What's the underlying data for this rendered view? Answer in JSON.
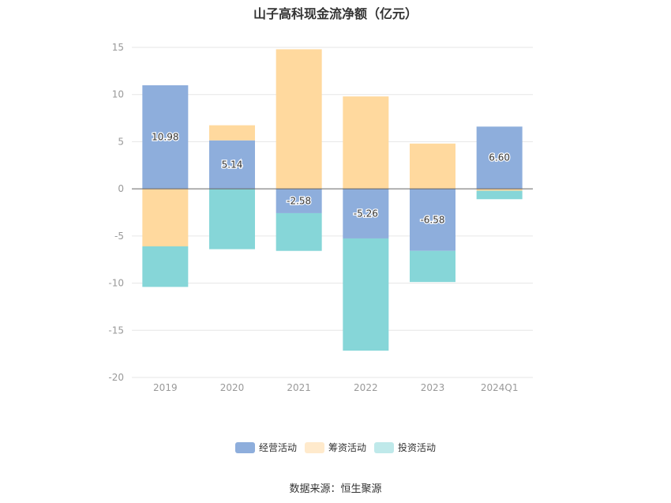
{
  "chart_data": {
    "type": "bar",
    "stacked": true,
    "title": "山子高科现金流净额（亿元）",
    "categories": [
      "2019",
      "2020",
      "2021",
      "2022",
      "2023",
      "2024Q1"
    ],
    "series": [
      {
        "name": "经营活动",
        "color": "#8eaedc",
        "values": [
          10.98,
          5.14,
          -2.58,
          -5.26,
          -6.58,
          6.6
        ],
        "labels": [
          "10.98",
          "5.14",
          "-2.58",
          "-5.26",
          "-6.58",
          "6.60"
        ]
      },
      {
        "name": "筹资活动",
        "color": "#ffd99e",
        "values": [
          -6.1,
          1.6,
          14.8,
          9.8,
          4.8,
          -0.2
        ]
      },
      {
        "name": "投资活动",
        "color": "#86d6d8",
        "values": [
          -4.3,
          -6.4,
          -4.0,
          -11.9,
          -3.3,
          -0.9
        ]
      }
    ],
    "ylim": [
      -20,
      15
    ],
    "yticks": [
      15,
      10,
      5,
      0,
      -5,
      -10,
      -15,
      -20
    ],
    "grid": true,
    "legend_position": "bottom",
    "legend_colors": [
      "#8eaedc",
      "#ffeacc",
      "#bfe9ea"
    ],
    "source": "数据来源：恒生聚源"
  }
}
